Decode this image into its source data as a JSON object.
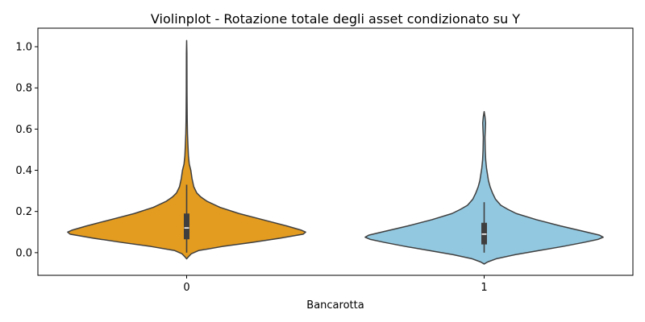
{
  "chart_data": {
    "type": "violin",
    "title": "Violinplot - Rotazione totale degli asset condizionato su Y",
    "xlabel": "Bancarotta",
    "ylabel": "",
    "categories": [
      "0",
      "1"
    ],
    "ylim": [
      -0.11,
      1.09
    ],
    "yticks": [
      "0.0",
      "0.2",
      "0.4",
      "0.6",
      "0.8",
      "1.0"
    ],
    "grid": false,
    "colors": {
      "0": "#e39b20",
      "1": "#92c8e0",
      "outline": "#3f3f3f",
      "box": "#3f3f3f",
      "median": "#ffffff"
    },
    "violins": [
      {
        "category": "0",
        "density_profile": [
          [
            -0.03,
            0.0
          ],
          [
            -0.02,
            0.015
          ],
          [
            -0.005,
            0.04
          ],
          [
            0.01,
            0.1
          ],
          [
            0.03,
            0.3
          ],
          [
            0.05,
            0.55
          ],
          [
            0.07,
            0.78
          ],
          [
            0.09,
            0.98
          ],
          [
            0.1,
            1.0
          ],
          [
            0.11,
            0.96
          ],
          [
            0.13,
            0.84
          ],
          [
            0.16,
            0.64
          ],
          [
            0.19,
            0.44
          ],
          [
            0.22,
            0.28
          ],
          [
            0.25,
            0.17
          ],
          [
            0.27,
            0.12
          ],
          [
            0.29,
            0.085
          ],
          [
            0.32,
            0.06
          ],
          [
            0.36,
            0.045
          ],
          [
            0.4,
            0.035
          ],
          [
            0.43,
            0.022
          ],
          [
            0.47,
            0.015
          ],
          [
            0.52,
            0.011
          ],
          [
            0.58,
            0.007
          ],
          [
            0.64,
            0.005
          ],
          [
            0.7,
            0.004
          ],
          [
            0.78,
            0.003
          ],
          [
            0.88,
            0.0025
          ],
          [
            0.97,
            0.002
          ],
          [
            1.03,
            0.0
          ]
        ],
        "box": {
          "q1": 0.065,
          "median": 0.12,
          "q3": 0.19,
          "whisker_low": 0.0,
          "whisker_high": 0.33
        }
      },
      {
        "category": "1",
        "density_profile": [
          [
            -0.055,
            0.0
          ],
          [
            -0.045,
            0.03
          ],
          [
            -0.03,
            0.1
          ],
          [
            -0.01,
            0.26
          ],
          [
            0.01,
            0.46
          ],
          [
            0.03,
            0.66
          ],
          [
            0.05,
            0.84
          ],
          [
            0.065,
            0.96
          ],
          [
            0.075,
            1.0
          ],
          [
            0.085,
            0.97
          ],
          [
            0.1,
            0.86
          ],
          [
            0.13,
            0.64
          ],
          [
            0.16,
            0.44
          ],
          [
            0.19,
            0.27
          ],
          [
            0.21,
            0.2
          ],
          [
            0.23,
            0.14
          ],
          [
            0.26,
            0.095
          ],
          [
            0.29,
            0.07
          ],
          [
            0.32,
            0.05
          ],
          [
            0.35,
            0.036
          ],
          [
            0.38,
            0.028
          ],
          [
            0.41,
            0.02
          ],
          [
            0.45,
            0.013
          ],
          [
            0.5,
            0.009
          ],
          [
            0.56,
            0.007
          ],
          [
            0.6,
            0.01
          ],
          [
            0.63,
            0.012
          ],
          [
            0.66,
            0.007
          ],
          [
            0.685,
            0.0
          ]
        ],
        "box": {
          "q1": 0.04,
          "median": 0.09,
          "q3": 0.145,
          "whisker_low": 0.0,
          "whisker_high": 0.245
        }
      }
    ]
  }
}
